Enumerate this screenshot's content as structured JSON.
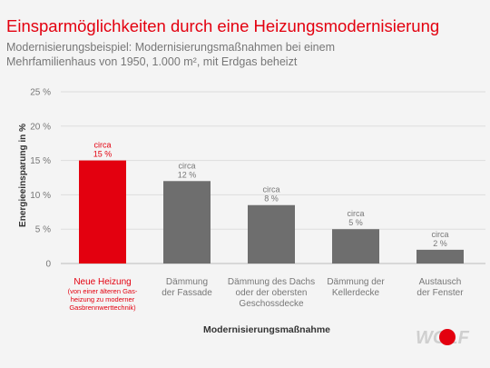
{
  "header": {
    "title": "Einsparmöglichkeiten durch eine Heizungsmodernisierung",
    "subtitle": "Modernisierungsbeispiel: Modernisierungsmaßnahmen bei einem Mehrfamilienhaus von 1950, 1.000 m², mit Erdgas beheizt"
  },
  "colors": {
    "accent": "#e3000f",
    "bar": "#6e6e6e",
    "background": "#f4f4f4"
  },
  "logo": {
    "text": "WOLF"
  },
  "chart_data": {
    "type": "bar",
    "ylabel": "Energieeinsparung in %",
    "xlabel": "Modernisierungsmaßnahme",
    "ylim": [
      0,
      25
    ],
    "yticks": [
      0,
      5,
      10,
      15,
      20,
      25
    ],
    "ytick_labels": [
      "0",
      "5 %",
      "10 %",
      "15 %",
      "20 %",
      "25 %"
    ],
    "grid": true,
    "categories": [
      {
        "lines": [
          "Neue Heizung"
        ],
        "note": [
          "(von einer älteren Gas-",
          "heizung zu moderner",
          "Gasbrennwerttechnik)"
        ],
        "highlight": true
      },
      {
        "lines": [
          "Dämmung",
          "der Fassade"
        ],
        "note": [],
        "highlight": false
      },
      {
        "lines": [
          "Dämmung des Dachs",
          "oder der obersten",
          "Geschossdecke"
        ],
        "note": [],
        "highlight": false
      },
      {
        "lines": [
          "Dämmung der",
          "Kellerdecke"
        ],
        "note": [],
        "highlight": false
      },
      {
        "lines": [
          "Austausch",
          "der Fenster"
        ],
        "note": [],
        "highlight": false
      }
    ],
    "values": [
      15,
      12,
      8.5,
      5,
      2
    ],
    "data_labels": [
      [
        "circa",
        "15 %"
      ],
      [
        "circa",
        "12 %"
      ],
      [
        "circa",
        "8 %"
      ],
      [
        "circa",
        "5 %"
      ],
      [
        "circa",
        "2 %"
      ]
    ]
  }
}
